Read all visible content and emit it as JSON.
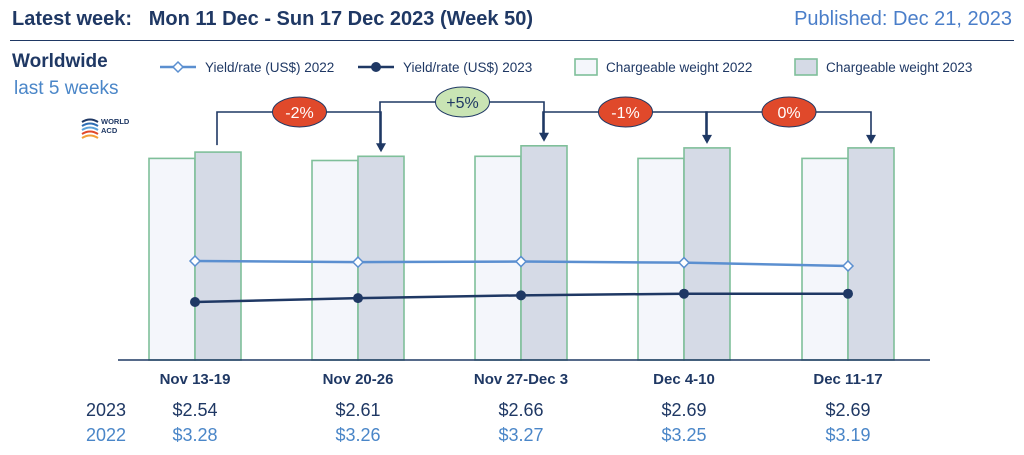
{
  "header": {
    "latest_label": "Latest week:",
    "week_text": "Mon 11 Dec - Sun 17 Dec 2023 (Week 50)",
    "published": "Published: Dec 21, 2023"
  },
  "subtitle": {
    "title": "Worldwide",
    "period": "last 5 weeks"
  },
  "logo": {
    "line1": "WORLD",
    "line2": "ACD"
  },
  "colors": {
    "navy": "#1f3864",
    "light_blue": "#5b8fd0",
    "bar_2022_fill": "#f4f6fb",
    "bar_2023_fill": "#d5dae6",
    "bar_stroke": "#7fbf9a",
    "badge_red": "#e0492b",
    "badge_green": "#c9e4b4"
  },
  "chart_data": {
    "type": "bar",
    "categories": [
      "Nov 13-19",
      "Nov 20-26",
      "Nov 27-Dec 3",
      "Dec 4-10",
      "Dec 11-17"
    ],
    "series": [
      {
        "name": "Chargeable weight 2022",
        "type": "bar",
        "values": [
          96,
          95,
          97,
          96,
          96
        ]
      },
      {
        "name": "Chargeable weight 2023",
        "type": "bar",
        "values": [
          99,
          97,
          102,
          101,
          101
        ]
      },
      {
        "name": "Yield/rate (US$) 2022",
        "type": "line",
        "values": [
          3.28,
          3.26,
          3.27,
          3.25,
          3.19
        ]
      },
      {
        "name": "Yield/rate (US$) 2023",
        "type": "line",
        "values": [
          2.54,
          2.61,
          2.66,
          2.69,
          2.69
        ]
      }
    ],
    "week_changes": [
      "-2%",
      "+5%",
      "-1%",
      "0%"
    ],
    "legend_position": "top",
    "grid": false
  },
  "table": {
    "label_2023": "2023",
    "label_2022": "2022",
    "values_2023": [
      "$2.54",
      "$2.61",
      "$2.66",
      "$2.69",
      "$2.69"
    ],
    "values_2022": [
      "$3.28",
      "$3.26",
      "$3.27",
      "$3.25",
      "$3.19"
    ]
  }
}
